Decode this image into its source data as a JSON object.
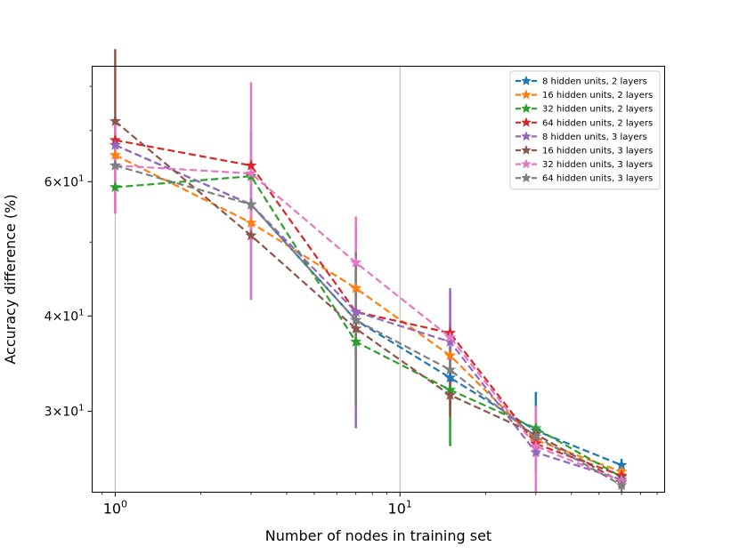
{
  "chart_data": {
    "type": "line",
    "title": "",
    "xlabel": "Number of nodes in training set",
    "ylabel": "Accuracy difference (%)",
    "xscale": "log",
    "yscale": "log",
    "xlim": [
      0.83,
      85
    ],
    "ylim": [
      23.5,
      85
    ],
    "x": [
      1,
      3,
      7,
      15,
      30,
      60
    ],
    "x_major_ticks": [
      {
        "value": 1,
        "base": "10",
        "exp": "0"
      },
      {
        "value": 10,
        "base": "10",
        "exp": "1"
      }
    ],
    "y_major_ticks": [
      {
        "value": 30,
        "mant": "3",
        "base": "10",
        "exp": "1"
      },
      {
        "value": 40,
        "mant": "4",
        "base": "10",
        "exp": "1"
      },
      {
        "value": 60,
        "mant": "6",
        "base": "10",
        "exp": "1"
      }
    ],
    "grid": "x-major",
    "legend_position": "top-right",
    "series": [
      {
        "name": "8 hidden units, 2 layers",
        "color": "#1f77b4",
        "values": [
          67,
          56,
          39.5,
          33.2,
          28.3,
          25.5
        ],
        "err": [
          0,
          14,
          1,
          1,
          3.5,
          0.5
        ]
      },
      {
        "name": "16 hidden units, 2 layers",
        "color": "#ff7f0e",
        "values": [
          65,
          53,
          43.5,
          35.5,
          27.5,
          25.0
        ],
        "err": [
          0,
          2,
          1,
          1,
          1,
          0.5
        ]
      },
      {
        "name": "32 hidden units, 2 layers",
        "color": "#2ca02c",
        "values": [
          59,
          61,
          37,
          32,
          28.5,
          24.6
        ],
        "err": [
          0,
          1,
          1,
          5,
          1,
          0.5
        ]
      },
      {
        "name": "64 hidden units, 2 layers",
        "color": "#d62728",
        "values": [
          68,
          63,
          40.5,
          38,
          27.2,
          24.7
        ],
        "err": [
          0,
          1,
          1,
          1,
          1,
          0.5
        ]
      },
      {
        "name": "8 hidden units, 3 layers",
        "color": "#9467bd",
        "values": [
          67,
          56,
          40.5,
          37,
          26.5,
          24.4
        ],
        "err": [
          0,
          1,
          12,
          6.5,
          1,
          0.5
        ]
      },
      {
        "name": "16 hidden units, 3 layers",
        "color": "#8c564b",
        "values": [
          72,
          51,
          38.5,
          31.5,
          28.0,
          24.2
        ],
        "err": [
          17.5,
          1,
          8,
          2,
          1,
          0.5
        ]
      },
      {
        "name": "32 hidden units, 3 layers",
        "color": "#e377c2",
        "values": [
          63,
          61.5,
          47,
          37.5,
          27.0,
          24.3
        ],
        "err": [
          8.5,
          19.5,
          7,
          1,
          3.5,
          0.5
        ]
      },
      {
        "name": "64 hidden units, 3 layers",
        "color": "#7f7f7f",
        "values": [
          63,
          56,
          39.5,
          34,
          27.8,
          24.0
        ],
        "err": [
          0,
          1,
          9,
          1,
          1,
          0.5
        ]
      }
    ]
  }
}
